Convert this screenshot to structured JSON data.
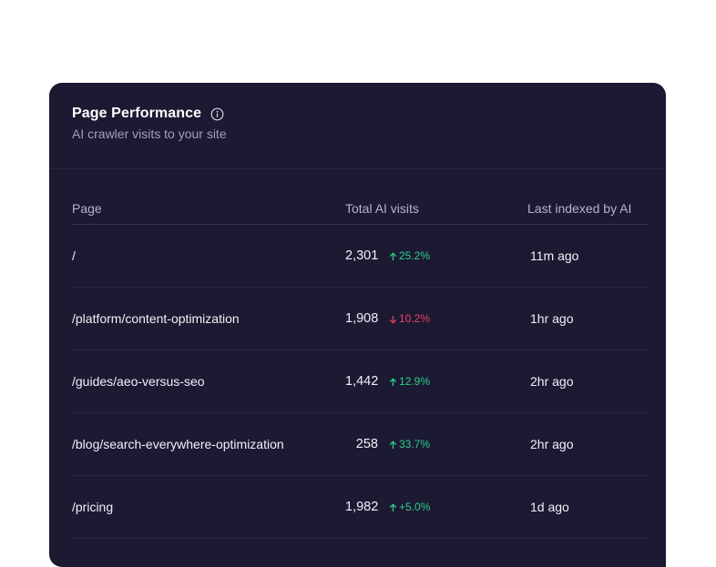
{
  "card": {
    "title": "Page Performance",
    "subtitle": "AI crawler visits to your site",
    "info_icon": "info-icon"
  },
  "table": {
    "headers": {
      "page": "Page",
      "visits": "Total AI visits",
      "last": "Last indexed by AI"
    },
    "rows": [
      {
        "page": "/",
        "visits": "2,301",
        "delta": "25.2%",
        "trend": "up",
        "last": "11m ago"
      },
      {
        "page": "/platform/content-optimization",
        "visits": "1,908",
        "delta": "10.2%",
        "trend": "down",
        "last": "1hr ago"
      },
      {
        "page": "/guides/aeo-versus-seo",
        "visits": "1,442",
        "delta": "12.9%",
        "trend": "up",
        "last": "2hr ago"
      },
      {
        "page": "/blog/search-everywhere-optimization",
        "visits": "258",
        "delta": "33.7%",
        "trend": "up",
        "last": "2hr ago"
      },
      {
        "page": "/pricing",
        "visits": "1,982",
        "delta": "+5.0%",
        "trend": "up",
        "last": "1d ago"
      }
    ]
  },
  "colors": {
    "card_bg": "#1c1933",
    "up": "#2ecf87",
    "down": "#ee3f62"
  }
}
